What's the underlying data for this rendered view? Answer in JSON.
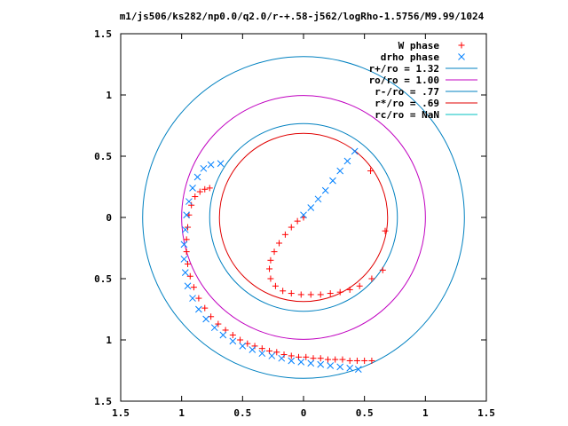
{
  "chart_data": {
    "type": "scatter",
    "title": "m1/js506/ks282/np0.0/q2.0/r-+.58-j562/logRho-1.5756/M9.99/1024",
    "xlabel": "",
    "ylabel": "",
    "xlim": [
      -1.5,
      1.5
    ],
    "ylim": [
      -1.5,
      1.5
    ],
    "x_ticks": [
      -1.5,
      -1,
      -0.5,
      0,
      0.5,
      1,
      1.5
    ],
    "x_tick_labels": [
      "1.5",
      "1",
      "0.5",
      "0",
      "0.5",
      "1",
      "1.5"
    ],
    "y_ticks": [
      1.5,
      1,
      0.5,
      0,
      -0.5,
      -1,
      -1.5
    ],
    "y_tick_labels": [
      "1.5",
      "1",
      "0.5",
      "0",
      "0.5",
      "1",
      "1.5"
    ],
    "grid": false,
    "legend_position": "top-right",
    "series": [
      {
        "name": "W phase",
        "marker": "+",
        "color": "#ff0000",
        "points": [
          [
            0.56,
            -1.17
          ],
          [
            0.5,
            -1.17
          ],
          [
            0.44,
            -1.17
          ],
          [
            0.38,
            -1.17
          ],
          [
            0.32,
            -1.16
          ],
          [
            0.26,
            -1.16
          ],
          [
            0.2,
            -1.16
          ],
          [
            0.14,
            -1.15
          ],
          [
            0.08,
            -1.15
          ],
          [
            0.02,
            -1.14
          ],
          [
            -0.04,
            -1.14
          ],
          [
            -0.1,
            -1.13
          ],
          [
            -0.16,
            -1.12
          ],
          [
            -0.22,
            -1.1
          ],
          [
            -0.28,
            -1.09
          ],
          [
            -0.34,
            -1.07
          ],
          [
            -0.4,
            -1.05
          ],
          [
            -0.46,
            -1.03
          ],
          [
            -0.52,
            -1.0
          ],
          [
            -0.58,
            -0.96
          ],
          [
            -0.64,
            -0.92
          ],
          [
            -0.7,
            -0.87
          ],
          [
            -0.76,
            -0.81
          ],
          [
            -0.81,
            -0.74
          ],
          [
            -0.86,
            -0.66
          ],
          [
            -0.9,
            -0.57
          ],
          [
            -0.93,
            -0.48
          ],
          [
            -0.95,
            -0.38
          ],
          [
            -0.96,
            -0.28
          ],
          [
            -0.96,
            -0.18
          ],
          [
            -0.95,
            -0.08
          ],
          [
            -0.94,
            0.02
          ],
          [
            -0.92,
            0.1
          ],
          [
            -0.89,
            0.17
          ],
          [
            -0.85,
            0.21
          ],
          [
            -0.81,
            0.23
          ],
          [
            -0.77,
            0.24
          ],
          [
            0.65,
            -0.43
          ],
          [
            0.56,
            -0.5
          ],
          [
            0.46,
            -0.56
          ],
          [
            0.38,
            -0.59
          ],
          [
            0.3,
            -0.61
          ],
          [
            0.22,
            -0.62
          ],
          [
            0.14,
            -0.63
          ],
          [
            0.06,
            -0.63
          ],
          [
            -0.02,
            -0.63
          ],
          [
            -0.1,
            -0.62
          ],
          [
            -0.17,
            -0.6
          ],
          [
            -0.23,
            -0.56
          ],
          [
            -0.27,
            -0.5
          ],
          [
            -0.28,
            -0.42
          ],
          [
            -0.27,
            -0.35
          ],
          [
            -0.24,
            -0.28
          ],
          [
            -0.2,
            -0.21
          ],
          [
            -0.15,
            -0.14
          ],
          [
            -0.1,
            -0.08
          ],
          [
            -0.05,
            -0.03
          ],
          [
            0.0,
            0.0
          ],
          [
            0.55,
            0.38
          ],
          [
            0.67,
            -0.11
          ]
        ]
      },
      {
        "name": "drho phase",
        "marker": "x",
        "color": "#0080ff",
        "points": [
          [
            0.45,
            -1.24
          ],
          [
            0.38,
            -1.23
          ],
          [
            0.3,
            -1.22
          ],
          [
            0.22,
            -1.21
          ],
          [
            0.14,
            -1.2
          ],
          [
            0.06,
            -1.19
          ],
          [
            -0.02,
            -1.18
          ],
          [
            -0.1,
            -1.17
          ],
          [
            -0.18,
            -1.15
          ],
          [
            -0.26,
            -1.13
          ],
          [
            -0.34,
            -1.11
          ],
          [
            -0.42,
            -1.08
          ],
          [
            -0.5,
            -1.05
          ],
          [
            -0.58,
            -1.01
          ],
          [
            -0.66,
            -0.96
          ],
          [
            -0.73,
            -0.9
          ],
          [
            -0.8,
            -0.83
          ],
          [
            -0.86,
            -0.75
          ],
          [
            -0.91,
            -0.66
          ],
          [
            -0.95,
            -0.56
          ],
          [
            -0.97,
            -0.45
          ],
          [
            -0.98,
            -0.34
          ],
          [
            -0.98,
            -0.22
          ],
          [
            -0.97,
            -0.1
          ],
          [
            -0.96,
            0.02
          ],
          [
            -0.94,
            0.13
          ],
          [
            -0.91,
            0.24
          ],
          [
            -0.87,
            0.33
          ],
          [
            -0.82,
            0.4
          ],
          [
            -0.76,
            0.43
          ],
          [
            -0.68,
            0.44
          ],
          [
            0.0,
            0.02
          ],
          [
            0.06,
            0.08
          ],
          [
            0.12,
            0.15
          ],
          [
            0.18,
            0.22
          ],
          [
            0.24,
            0.3
          ],
          [
            0.3,
            0.38
          ],
          [
            0.36,
            0.46
          ],
          [
            0.42,
            0.54
          ]
        ]
      },
      {
        "name": "r+/ro = 1.32",
        "type": "circle",
        "radius": 1.32,
        "color": "#0080c0"
      },
      {
        "name": "ro/ro = 1.00",
        "type": "circle",
        "radius": 1.0,
        "color": "#c000c0"
      },
      {
        "name": "r-/ro = .77",
        "type": "circle",
        "radius": 0.77,
        "color": "#0080c0"
      },
      {
        "name": "r*/ro = .69",
        "type": "circle",
        "radius": 0.69,
        "color": "#e00000"
      },
      {
        "name": "rc/ro = NaN",
        "type": "circle",
        "radius": null,
        "color": "#00c0c0"
      }
    ]
  }
}
